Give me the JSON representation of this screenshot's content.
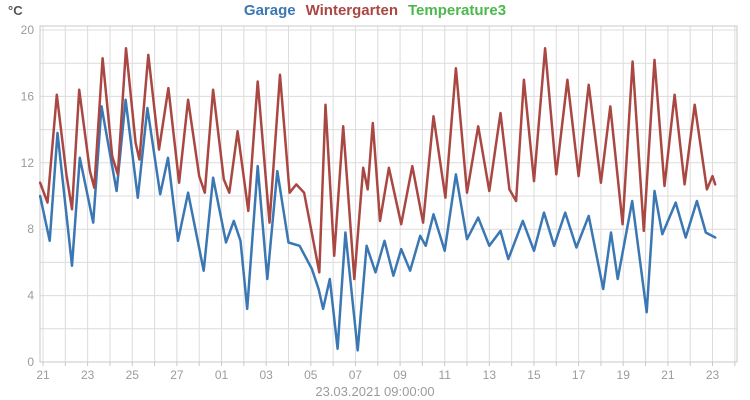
{
  "header": {
    "y_axis_unit": "°C"
  },
  "legend": {
    "items": [
      {
        "label": "Garage",
        "color": "#3a77b3"
      },
      {
        "label": "Wintergarten",
        "color": "#a94743"
      },
      {
        "label": "Temperature3",
        "color": "#4cb84c"
      }
    ]
  },
  "footer": {
    "timestamp": "23.03.2021 09:00:00"
  },
  "colors": {
    "background": "#ffffff",
    "gridline": "#dcdcdc",
    "plot_border": "#c9c9c9",
    "tick_label": "#9b9b9b",
    "series_garage": "#3a77b3",
    "series_wintergarten": "#a94743",
    "series_temperature3": "#4cb84c"
  },
  "chart_data": {
    "type": "line",
    "title": "",
    "xlabel": "",
    "ylabel": "°C",
    "grid": true,
    "legend_position": "top-center",
    "x_axis": {
      "description": "days, ticks labeled with day-of-month from 21.02 to 23.03",
      "tick_labels": [
        "21",
        "23",
        "25",
        "27",
        "01",
        "03",
        "05",
        "07",
        "09",
        "11",
        "13",
        "15",
        "17",
        "19",
        "21",
        "23"
      ],
      "tick_days": [
        0,
        2,
        4,
        6,
        8,
        10,
        12,
        14,
        16,
        18,
        20,
        22,
        24,
        26,
        28,
        30
      ],
      "minor_gridline_every_days": 1,
      "range_days": [
        -0.135,
        31.12
      ]
    },
    "y_axis": {
      "unit": "°C",
      "tick_labels": [
        "20",
        "16",
        "12",
        "8",
        "4",
        "0"
      ],
      "tick_values": [
        20,
        16,
        12,
        8,
        4,
        0
      ],
      "gridline_step": 2,
      "range": [
        0,
        20.3
      ]
    },
    "series": [
      {
        "name": "Garage",
        "color": "#3a77b3",
        "points": [
          [
            -0.13,
            10.0
          ],
          [
            0.3,
            7.3
          ],
          [
            0.65,
            13.8
          ],
          [
            1.3,
            5.8
          ],
          [
            1.65,
            12.3
          ],
          [
            2.25,
            8.4
          ],
          [
            2.62,
            15.4
          ],
          [
            3.3,
            10.3
          ],
          [
            3.7,
            15.8
          ],
          [
            4.25,
            9.9
          ],
          [
            4.68,
            15.3
          ],
          [
            5.25,
            10.1
          ],
          [
            5.6,
            12.3
          ],
          [
            6.05,
            7.3
          ],
          [
            6.5,
            10.2
          ],
          [
            7.2,
            5.5
          ],
          [
            7.62,
            11.1
          ],
          [
            8.2,
            7.2
          ],
          [
            8.55,
            8.5
          ],
          [
            8.85,
            7.3
          ],
          [
            9.15,
            3.2
          ],
          [
            9.62,
            11.8
          ],
          [
            10.05,
            5.0
          ],
          [
            10.5,
            11.5
          ],
          [
            11.0,
            7.2
          ],
          [
            11.5,
            7.0
          ],
          [
            12.05,
            5.6
          ],
          [
            12.35,
            4.4
          ],
          [
            12.55,
            3.2
          ],
          [
            12.85,
            5.0
          ],
          [
            13.2,
            0.8
          ],
          [
            13.55,
            7.8
          ],
          [
            14.1,
            0.7
          ],
          [
            14.5,
            7.0
          ],
          [
            14.9,
            5.4
          ],
          [
            15.3,
            7.3
          ],
          [
            15.7,
            5.2
          ],
          [
            16.05,
            6.8
          ],
          [
            16.45,
            5.5
          ],
          [
            16.9,
            7.6
          ],
          [
            17.15,
            7.0
          ],
          [
            17.5,
            8.9
          ],
          [
            18.0,
            6.7
          ],
          [
            18.5,
            11.3
          ],
          [
            19.0,
            7.4
          ],
          [
            19.5,
            8.7
          ],
          [
            20.0,
            7.0
          ],
          [
            20.5,
            7.9
          ],
          [
            20.85,
            6.2
          ],
          [
            21.5,
            8.5
          ],
          [
            22.0,
            6.7
          ],
          [
            22.45,
            9.0
          ],
          [
            22.9,
            7.0
          ],
          [
            23.4,
            9.0
          ],
          [
            23.9,
            6.9
          ],
          [
            24.45,
            8.8
          ],
          [
            25.1,
            4.4
          ],
          [
            25.45,
            7.8
          ],
          [
            25.75,
            5.0
          ],
          [
            26.4,
            9.7
          ],
          [
            27.05,
            3.0
          ],
          [
            27.4,
            10.3
          ],
          [
            27.75,
            7.7
          ],
          [
            28.35,
            9.6
          ],
          [
            28.8,
            7.5
          ],
          [
            29.3,
            9.7
          ],
          [
            29.7,
            7.8
          ],
          [
            30.12,
            7.5
          ]
        ]
      },
      {
        "name": "Wintergarten",
        "color": "#a94743",
        "points": [
          [
            -0.13,
            10.8
          ],
          [
            0.2,
            9.6
          ],
          [
            0.62,
            16.1
          ],
          [
            1.05,
            11.3
          ],
          [
            1.3,
            9.2
          ],
          [
            1.62,
            16.4
          ],
          [
            2.1,
            11.5
          ],
          [
            2.3,
            10.5
          ],
          [
            2.67,
            18.3
          ],
          [
            3.1,
            12.4
          ],
          [
            3.35,
            11.3
          ],
          [
            3.72,
            18.9
          ],
          [
            4.15,
            13.2
          ],
          [
            4.32,
            12.2
          ],
          [
            4.72,
            18.5
          ],
          [
            5.2,
            12.8
          ],
          [
            5.62,
            16.5
          ],
          [
            6.1,
            10.8
          ],
          [
            6.5,
            15.8
          ],
          [
            7.0,
            11.2
          ],
          [
            7.25,
            10.2
          ],
          [
            7.62,
            16.4
          ],
          [
            8.1,
            11.0
          ],
          [
            8.35,
            10.2
          ],
          [
            8.72,
            13.9
          ],
          [
            9.2,
            9.1
          ],
          [
            9.62,
            16.9
          ],
          [
            10.15,
            8.4
          ],
          [
            10.62,
            17.3
          ],
          [
            11.05,
            10.2
          ],
          [
            11.35,
            10.7
          ],
          [
            11.7,
            10.2
          ],
          [
            12.1,
            7.4
          ],
          [
            12.38,
            5.4
          ],
          [
            12.66,
            15.5
          ],
          [
            13.05,
            6.4
          ],
          [
            13.45,
            14.2
          ],
          [
            13.95,
            5.0
          ],
          [
            14.35,
            11.7
          ],
          [
            14.55,
            10.4
          ],
          [
            14.78,
            14.4
          ],
          [
            15.1,
            8.5
          ],
          [
            15.5,
            11.7
          ],
          [
            16.05,
            8.3
          ],
          [
            16.55,
            11.8
          ],
          [
            17.03,
            8.4
          ],
          [
            17.5,
            14.8
          ],
          [
            18.03,
            9.9
          ],
          [
            18.5,
            17.7
          ],
          [
            19.0,
            10.2
          ],
          [
            19.5,
            14.2
          ],
          [
            20.0,
            10.3
          ],
          [
            20.5,
            15.0
          ],
          [
            20.9,
            10.4
          ],
          [
            21.2,
            9.7
          ],
          [
            21.55,
            17.0
          ],
          [
            22.0,
            10.9
          ],
          [
            22.5,
            18.9
          ],
          [
            23.0,
            11.3
          ],
          [
            23.5,
            17.0
          ],
          [
            24.0,
            11.2
          ],
          [
            24.45,
            16.7
          ],
          [
            25.0,
            10.8
          ],
          [
            25.42,
            15.4
          ],
          [
            25.97,
            8.3
          ],
          [
            26.42,
            18.1
          ],
          [
            26.92,
            7.9
          ],
          [
            27.4,
            18.2
          ],
          [
            27.85,
            10.6
          ],
          [
            28.3,
            16.1
          ],
          [
            28.75,
            10.7
          ],
          [
            29.2,
            15.5
          ],
          [
            29.75,
            10.4
          ],
          [
            30.0,
            11.2
          ],
          [
            30.12,
            10.7
          ]
        ]
      },
      {
        "name": "Temperature3",
        "color": "#4cb84c",
        "points": []
      }
    ]
  }
}
